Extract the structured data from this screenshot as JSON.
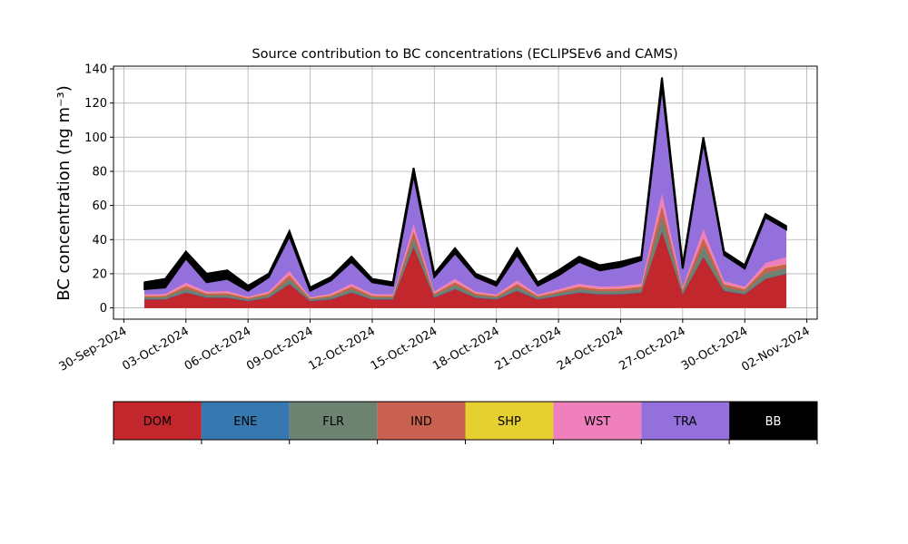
{
  "chart_data": {
    "type": "stacked_area",
    "title": "Source contribution to BC concentrations (ECLIPSEv6 and CAMS)",
    "y_label": "BC concentration (ng m⁻³)",
    "x": [
      "2024-10-01",
      "2024-10-02",
      "2024-10-03",
      "2024-10-04",
      "2024-10-05",
      "2024-10-06",
      "2024-10-07",
      "2024-10-08",
      "2024-10-09",
      "2024-10-10",
      "2024-10-11",
      "2024-10-12",
      "2024-10-13",
      "2024-10-14",
      "2024-10-15",
      "2024-10-16",
      "2024-10-17",
      "2024-10-18",
      "2024-10-19",
      "2024-10-20",
      "2024-10-21",
      "2024-10-22",
      "2024-10-23",
      "2024-10-24",
      "2024-10-25",
      "2024-10-26",
      "2024-10-27",
      "2024-10-28",
      "2024-10-29",
      "2024-10-30",
      "2024-10-31",
      "2024-11-01"
    ],
    "series": [
      {
        "name": "DOM",
        "color": "#c1272d",
        "values": [
          5,
          5,
          9,
          6,
          6,
          4,
          6,
          14,
          4,
          5,
          9,
          5,
          5,
          36,
          6,
          11,
          6,
          5,
          10,
          5,
          7,
          9,
          8,
          8,
          9,
          45,
          8,
          30,
          10,
          8,
          17,
          20
        ]
      },
      {
        "name": "ENE",
        "color": "#3878b0",
        "values": [
          0.3,
          0.3,
          0.3,
          0.3,
          0.3,
          0.3,
          0.3,
          0.3,
          0.3,
          0.3,
          0.3,
          0.3,
          0.3,
          0.3,
          0.3,
          0.3,
          0.3,
          0.3,
          0.3,
          0.3,
          0.3,
          0.3,
          0.3,
          0.3,
          0.3,
          0.3,
          0.3,
          0.3,
          0.3,
          0.3,
          0.3,
          0.3
        ]
      },
      {
        "name": "FLR",
        "color": "#6e8271",
        "values": [
          0.9,
          1,
          2,
          1.2,
          1.3,
          0.8,
          1.2,
          2.7,
          0.7,
          1.1,
          1.8,
          1,
          0.9,
          5,
          1.2,
          2.1,
          1.2,
          0.9,
          2.1,
          0.9,
          1.3,
          1.8,
          1.5,
          1.6,
          1.8,
          8,
          1.5,
          6,
          2,
          1.5,
          3.3,
          3
        ]
      },
      {
        "name": "IND",
        "color": "#c8614f",
        "values": [
          0.8,
          0.9,
          1.7,
          1,
          1.1,
          0.7,
          1,
          2.3,
          0.6,
          0.9,
          1.5,
          0.9,
          0.8,
          4,
          1,
          1.8,
          1,
          0.8,
          1.8,
          0.8,
          1.1,
          1.5,
          1.3,
          1.4,
          1.5,
          7,
          1.3,
          5,
          1.7,
          1.3,
          2.8,
          2.4
        ]
      },
      {
        "name": "SHP",
        "color": "#e6cf30",
        "values": [
          0.2,
          0.2,
          0.2,
          0.2,
          0.2,
          0.2,
          0.2,
          0.2,
          0.2,
          0.2,
          0.2,
          0.2,
          0.2,
          0.2,
          0.2,
          0.2,
          0.2,
          0.2,
          0.2,
          0.2,
          0.2,
          0.2,
          0.2,
          0.2,
          0.2,
          0.2,
          0.2,
          0.2,
          0.2,
          0.2,
          0.2,
          0.2
        ]
      },
      {
        "name": "WST",
        "color": "#f07fbd",
        "values": [
          0.8,
          0.9,
          1.7,
          1,
          1.1,
          0.7,
          1,
          2.3,
          0.6,
          0.9,
          1.5,
          0.9,
          0.8,
          4,
          1,
          1.8,
          1,
          0.8,
          1.8,
          0.8,
          1.1,
          1.5,
          1.3,
          1.4,
          1.5,
          7,
          1.3,
          5,
          1.7,
          1.3,
          2.8,
          4
        ]
      },
      {
        "name": "TRA",
        "color": "#9370db",
        "values": [
          3,
          3.7,
          14.1,
          5.3,
          7,
          3.3,
          8.3,
          20.2,
          3.6,
          7.6,
          12.7,
          6.7,
          5,
          28.5,
          8.3,
          14.8,
          8.3,
          5,
          14.8,
          5,
          8,
          12.7,
          9.4,
          11.1,
          13.7,
          62.5,
          10.4,
          50.5,
          15.1,
          10.4,
          26.6,
          16.1
        ]
      },
      {
        "name": "BB",
        "color": "#000000",
        "values": [
          4,
          5,
          4,
          5,
          5,
          3,
          2,
          3,
          2,
          2,
          3,
          2,
          2,
          4,
          2,
          3,
          2,
          2,
          4,
          2,
          3,
          3,
          3,
          3,
          2,
          5,
          2,
          3,
          2,
          2,
          2,
          2
        ]
      }
    ],
    "xlim": [
      "2024-09-29T12:00",
      "2024-11-02T12:00"
    ],
    "xticks": [
      {
        "value": "2024-09-30",
        "label": "30-Sep-2024"
      },
      {
        "value": "2024-10-03",
        "label": "03-Oct-2024"
      },
      {
        "value": "2024-10-06",
        "label": "06-Oct-2024"
      },
      {
        "value": "2024-10-09",
        "label": "09-Oct-2024"
      },
      {
        "value": "2024-10-12",
        "label": "12-Oct-2024"
      },
      {
        "value": "2024-10-15",
        "label": "15-Oct-2024"
      },
      {
        "value": "2024-10-18",
        "label": "18-Oct-2024"
      },
      {
        "value": "2024-10-21",
        "label": "21-Oct-2024"
      },
      {
        "value": "2024-10-24",
        "label": "24-Oct-2024"
      },
      {
        "value": "2024-10-27",
        "label": "27-Oct-2024"
      },
      {
        "value": "2024-10-30",
        "label": "30-Oct-2024"
      },
      {
        "value": "2024-11-02",
        "label": "02-Nov-2024"
      }
    ],
    "ylim": [
      -6.6,
      141.6
    ],
    "yticks": [
      0,
      20,
      40,
      60,
      80,
      100,
      120,
      140
    ],
    "grid": true
  }
}
